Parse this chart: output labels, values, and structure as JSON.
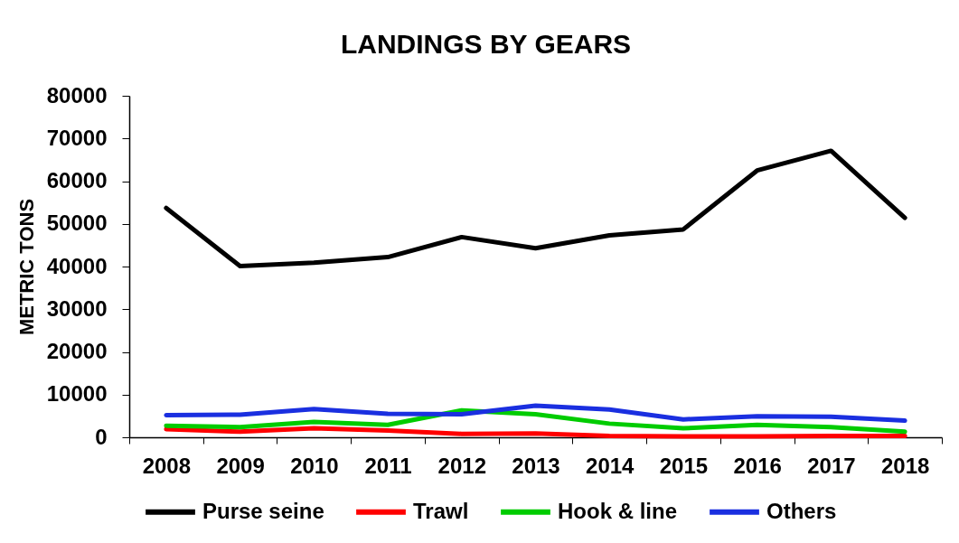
{
  "chart_data": {
    "type": "line",
    "title": "LANDINGS BY GEARS",
    "ylabel": "METRIC TONS",
    "categories": [
      "2008",
      "2009",
      "2010",
      "2011",
      "2012",
      "2013",
      "2014",
      "2015",
      "2016",
      "2017",
      "2018"
    ],
    "series": [
      {
        "name": "Purse seine",
        "color": "#000000",
        "values": [
          53700,
          40100,
          40900,
          42200,
          46900,
          44300,
          47300,
          48700,
          62500,
          67100,
          51400
        ]
      },
      {
        "name": "Trawl",
        "color": "#ff0000",
        "values": [
          1900,
          1300,
          2100,
          1600,
          800,
          900,
          300,
          200,
          200,
          300,
          300
        ]
      },
      {
        "name": "Hook & line",
        "color": "#00cc00",
        "values": [
          2700,
          2400,
          3600,
          2900,
          6300,
          5400,
          3200,
          2100,
          2900,
          2400,
          1300
        ]
      },
      {
        "name": "Others",
        "color": "#1a2fe0",
        "values": [
          5200,
          5300,
          6600,
          5500,
          5400,
          7400,
          6500,
          4200,
          4900,
          4800,
          3900
        ]
      }
    ],
    "ylim": [
      0,
      80000
    ],
    "yticks": [
      0,
      10000,
      20000,
      30000,
      40000,
      50000,
      60000,
      70000,
      80000
    ],
    "grid": false,
    "legend": "bottom",
    "marker": "none"
  }
}
